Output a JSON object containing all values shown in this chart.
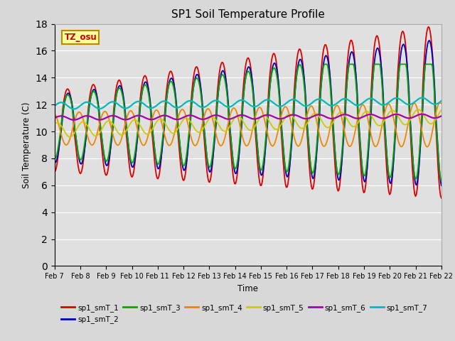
{
  "title": "SP1 Soil Temperature Profile",
  "xlabel": "Time",
  "ylabel": "Soil Temperature (C)",
  "annotation": "TZ_osu",
  "ylim": [
    0,
    18
  ],
  "yticks": [
    0,
    2,
    4,
    6,
    8,
    10,
    12,
    14,
    16,
    18
  ],
  "fig_bg": "#d8d8d8",
  "plot_bg": "#e0e0e0",
  "series_colors": {
    "sp1_smT_1": "#dd0000",
    "sp1_smT_2": "#0000bb",
    "sp1_smT_3": "#00aa00",
    "sp1_smT_4": "#ee8800",
    "sp1_smT_5": "#cccc00",
    "sp1_smT_6": "#aa00aa",
    "sp1_smT_7": "#00bbbb"
  },
  "date_labels": [
    "Feb 7",
    "Feb 8",
    "Feb 9",
    "Feb 10",
    "Feb 11",
    "Feb 12",
    "Feb 13",
    "Feb 14",
    "Feb 15",
    "Feb 16",
    "Feb 17",
    "Feb 18",
    "Feb 19",
    "Feb 20",
    "Feb 21",
    "Feb 22"
  ],
  "n_points": 480
}
